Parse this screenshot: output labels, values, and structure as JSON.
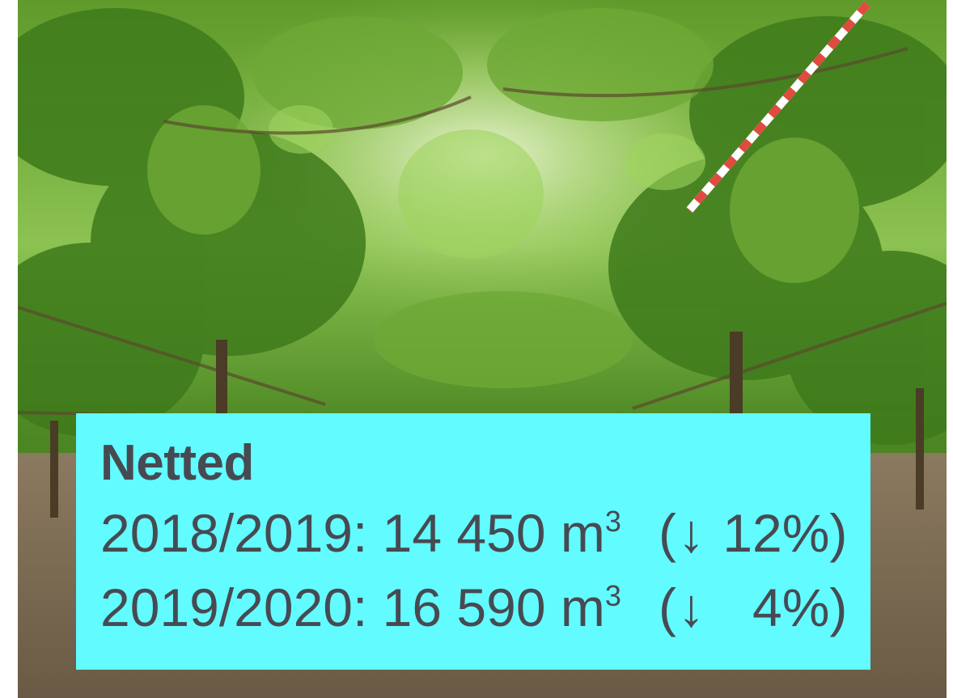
{
  "caption": {
    "title": "Netted",
    "rows": [
      {
        "season": "2018/2019:",
        "amount": "14 450 m",
        "unit_exp": "3",
        "open": "(",
        "arrow": "↓",
        "pct": " 12%)"
      },
      {
        "season": "2019/2020:",
        "amount": "16 590 m",
        "unit_exp": "3",
        "open": "(",
        "arrow": "↓",
        "pct": "   4%)"
      }
    ]
  },
  "colors": {
    "caption_bg": "#62fbff",
    "caption_text": "#474a52",
    "canopy": "#3f7a1c",
    "ground": "#7a6a50"
  }
}
